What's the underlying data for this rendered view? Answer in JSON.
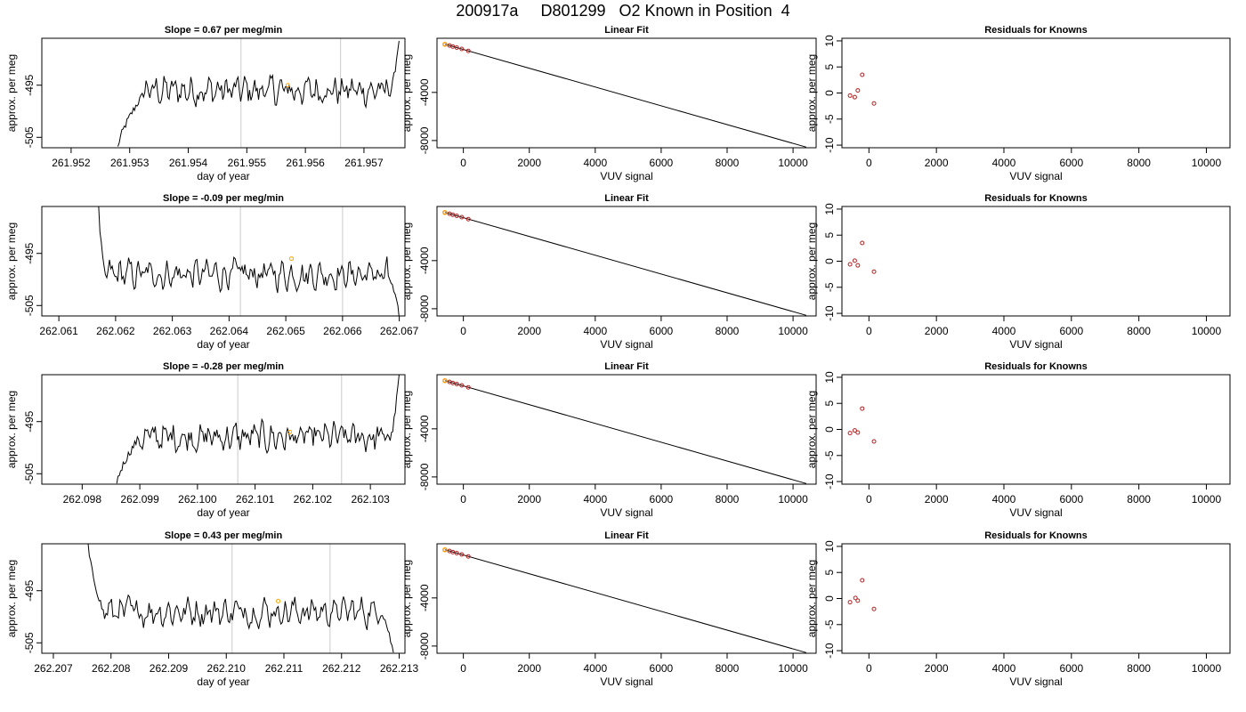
{
  "page_title": "200917a     D801299   O2 Known in Position  4",
  "colors": {
    "trace": "#000000",
    "vline": "#d3d3d3",
    "highlight": "#ffa500",
    "knowns": "#b22222",
    "fit": "#000000"
  },
  "chart_data": [
    {
      "type": "line",
      "panel": "timeseries",
      "row": 1,
      "title": "Slope =  0.67  per meg/min",
      "xlabel": "day of year",
      "ylabel": "approx. per meg",
      "xticks": [
        "261.952",
        "261.953",
        "261.954",
        "261.955",
        "261.956",
        "261.957"
      ],
      "xlim": [
        261.9515,
        261.9577
      ],
      "yticks": [
        "-495",
        "-505"
      ],
      "ytick_values": [
        -495,
        -505
      ],
      "ylim": [
        -507,
        -486
      ],
      "vlines": [
        261.9549,
        261.9566
      ],
      "highlight_point": {
        "x": 261.9557,
        "y": -495
      },
      "series": {
        "x0": 261.9528,
        "x1": 261.9576,
        "y_start": -507,
        "y_end": -486,
        "level": -496,
        "rise": 0.1,
        "fall": 0.97
      }
    },
    {
      "type": "scatter",
      "panel": "linear-fit",
      "row": 1,
      "title": "Linear Fit",
      "xlabel": "VUV signal",
      "ylabel": "approx. per meg",
      "xticks": [
        "0",
        "2000",
        "4000",
        "6000",
        "8000",
        "10000"
      ],
      "xlim": [
        -800,
        10700
      ],
      "yticks": [
        "-4000",
        "-8000"
      ],
      "ytick_values": [
        -4000,
        -8000
      ],
      "ylim": [
        -8600,
        500
      ],
      "fit_line": [
        [
          -550,
          0
        ],
        [
          10400,
          -8550
        ]
      ],
      "points": [
        [
          -560,
          0
        ],
        [
          -420,
          -100
        ],
        [
          -320,
          -190
        ],
        [
          -200,
          -280
        ],
        [
          -50,
          -390
        ],
        [
          150,
          -550
        ]
      ],
      "highlight_point": [
        -560,
        0
      ]
    },
    {
      "type": "scatter",
      "panel": "residuals",
      "row": 1,
      "title": "Residuals for Knowns",
      "xlabel": "VUV signal",
      "ylabel": "approx. per meg",
      "xticks": [
        "0",
        "2000",
        "4000",
        "6000",
        "8000",
        "10000"
      ],
      "xlim": [
        -800,
        10700
      ],
      "yticks": [
        "-10",
        "-5",
        "0",
        "5",
        "10"
      ],
      "ytick_values": [
        -10,
        -5,
        0,
        5,
        10
      ],
      "ylim": [
        -10.5,
        10.5
      ],
      "points": [
        [
          -560,
          -0.5
        ],
        [
          -420,
          -0.8
        ],
        [
          -330,
          0.5
        ],
        [
          -200,
          3.5
        ],
        [
          150,
          -2.0
        ]
      ]
    },
    {
      "type": "line",
      "panel": "timeseries",
      "row": 2,
      "title": "Slope =  -0.09  per meg/min",
      "xlabel": "day of year",
      "ylabel": "approx. per meg",
      "xticks": [
        "262.061",
        "262.062",
        "262.063",
        "262.064",
        "262.065",
        "262.066",
        "262.067"
      ],
      "xlim": [
        262.0607,
        262.0671
      ],
      "yticks": [
        "-495",
        "-505"
      ],
      "ytick_values": [
        -495,
        -505
      ],
      "ylim": [
        -507,
        -486
      ],
      "vlines": [
        262.0642,
        262.066
      ],
      "highlight_point": {
        "x": 262.0651,
        "y": -496
      },
      "series": {
        "x0": 262.0617,
        "x1": 262.067,
        "y_start": -486,
        "y_end": -507,
        "level": -499,
        "rise": 0.02,
        "fall": 0.96
      }
    },
    {
      "type": "scatter",
      "panel": "linear-fit",
      "row": 2,
      "title": "Linear Fit",
      "xlabel": "VUV signal",
      "ylabel": "approx. per meg",
      "xticks": [
        "0",
        "2000",
        "4000",
        "6000",
        "8000",
        "10000"
      ],
      "xlim": [
        -800,
        10700
      ],
      "yticks": [
        "-4000",
        "-8000"
      ],
      "ytick_values": [
        -4000,
        -8000
      ],
      "ylim": [
        -8600,
        500
      ],
      "fit_line": [
        [
          -550,
          0
        ],
        [
          10400,
          -8550
        ]
      ],
      "points": [
        [
          -560,
          0
        ],
        [
          -420,
          -100
        ],
        [
          -320,
          -190
        ],
        [
          -200,
          -280
        ],
        [
          -50,
          -390
        ],
        [
          150,
          -550
        ]
      ],
      "highlight_point": [
        -560,
        0
      ]
    },
    {
      "type": "scatter",
      "panel": "residuals",
      "row": 2,
      "title": "Residuals for Knowns",
      "xlabel": "VUV signal",
      "ylabel": "approx. per meg",
      "xticks": [
        "0",
        "2000",
        "4000",
        "6000",
        "8000",
        "10000"
      ],
      "xlim": [
        -800,
        10700
      ],
      "yticks": [
        "-10",
        "-5",
        "0",
        "5",
        "10"
      ],
      "ytick_values": [
        -10,
        -5,
        0,
        5,
        10
      ],
      "ylim": [
        -10.5,
        10.5
      ],
      "points": [
        [
          -560,
          -0.6
        ],
        [
          -420,
          0.1
        ],
        [
          -330,
          -0.8
        ],
        [
          -200,
          3.5
        ],
        [
          150,
          -2.0
        ]
      ]
    },
    {
      "type": "line",
      "panel": "timeseries",
      "row": 3,
      "title": "Slope =  -0.28  per meg/min",
      "xlabel": "day of year",
      "ylabel": "approx. per meg",
      "xticks": [
        "262.098",
        "262.099",
        "262.100",
        "262.101",
        "262.102",
        "262.103"
      ],
      "xlim": [
        262.0973,
        262.1036
      ],
      "yticks": [
        "-495",
        "-505"
      ],
      "ytick_values": [
        -495,
        -505
      ],
      "ylim": [
        -507,
        -486
      ],
      "vlines": [
        262.1007,
        262.1025
      ],
      "highlight_point": {
        "x": 262.1016,
        "y": -497
      },
      "series": {
        "x0": 262.0986,
        "x1": 262.1035,
        "y_start": -507,
        "y_end": -486,
        "level": -498,
        "rise": 0.08,
        "fall": 0.97
      }
    },
    {
      "type": "scatter",
      "panel": "linear-fit",
      "row": 3,
      "title": "Linear Fit",
      "xlabel": "VUV signal",
      "ylabel": "approx. per meg",
      "xticks": [
        "0",
        "2000",
        "4000",
        "6000",
        "8000",
        "10000"
      ],
      "xlim": [
        -800,
        10700
      ],
      "yticks": [
        "-4000",
        "-8000"
      ],
      "ytick_values": [
        -4000,
        -8000
      ],
      "ylim": [
        -8600,
        500
      ],
      "fit_line": [
        [
          -550,
          0
        ],
        [
          10400,
          -8550
        ]
      ],
      "points": [
        [
          -560,
          0
        ],
        [
          -420,
          -100
        ],
        [
          -320,
          -190
        ],
        [
          -200,
          -280
        ],
        [
          -50,
          -390
        ],
        [
          150,
          -550
        ]
      ],
      "highlight_point": [
        -560,
        0
      ]
    },
    {
      "type": "scatter",
      "panel": "residuals",
      "row": 3,
      "title": "Residuals for Knowns",
      "xlabel": "VUV signal",
      "ylabel": "approx. per meg",
      "xticks": [
        "0",
        "2000",
        "4000",
        "6000",
        "8000",
        "10000"
      ],
      "xlim": [
        -800,
        10700
      ],
      "yticks": [
        "-10",
        "-5",
        "0",
        "5",
        "10"
      ],
      "ytick_values": [
        -10,
        -5,
        0,
        5,
        10
      ],
      "ylim": [
        -10.5,
        10.5
      ],
      "points": [
        [
          -560,
          -0.7
        ],
        [
          -420,
          -0.2
        ],
        [
          -330,
          -0.6
        ],
        [
          -200,
          4.0
        ],
        [
          150,
          -2.3
        ]
      ]
    },
    {
      "type": "line",
      "panel": "timeseries",
      "row": 4,
      "title": "Slope =  0.43  per meg/min",
      "xlabel": "day of year",
      "ylabel": "approx. per meg",
      "xticks": [
        "262.207",
        "262.208",
        "262.209",
        "262.210",
        "262.211",
        "262.212",
        "262.213"
      ],
      "xlim": [
        262.2068,
        262.2131
      ],
      "yticks": [
        "-495",
        "-505"
      ],
      "ytick_values": [
        -495,
        -505
      ],
      "ylim": [
        -507,
        -486
      ],
      "vlines": [
        262.2101,
        262.2118
      ],
      "highlight_point": {
        "x": 262.2109,
        "y": -497
      },
      "series": {
        "x0": 262.2076,
        "x1": 262.2129,
        "y_start": -486,
        "y_end": -507,
        "level": -499,
        "rise": 0.05,
        "fall": 0.96
      }
    },
    {
      "type": "scatter",
      "panel": "linear-fit",
      "row": 4,
      "title": "Linear Fit",
      "xlabel": "VUV signal",
      "ylabel": "approx. per meg",
      "xticks": [
        "0",
        "2000",
        "4000",
        "6000",
        "8000",
        "10000"
      ],
      "xlim": [
        -800,
        10700
      ],
      "yticks": [
        "-4000",
        "-8000"
      ],
      "ytick_values": [
        -4000,
        -8000
      ],
      "ylim": [
        -8600,
        500
      ],
      "fit_line": [
        [
          -550,
          0
        ],
        [
          10400,
          -8550
        ]
      ],
      "points": [
        [
          -560,
          0
        ],
        [
          -420,
          -100
        ],
        [
          -320,
          -190
        ],
        [
          -200,
          -280
        ],
        [
          -50,
          -390
        ],
        [
          150,
          -550
        ]
      ],
      "highlight_point": [
        -560,
        0
      ]
    },
    {
      "type": "scatter",
      "panel": "residuals",
      "row": 4,
      "title": "Residuals for Knowns",
      "xlabel": "VUV signal",
      "ylabel": "approx. per meg",
      "xticks": [
        "0",
        "2000",
        "4000",
        "6000",
        "8000",
        "10000"
      ],
      "xlim": [
        -800,
        10700
      ],
      "yticks": [
        "-10",
        "-5",
        "0",
        "5",
        "10"
      ],
      "ytick_values": [
        -10,
        -5,
        0,
        5,
        10
      ],
      "ylim": [
        -10.5,
        10.5
      ],
      "points": [
        [
          -560,
          -0.7
        ],
        [
          -400,
          0.1
        ],
        [
          -330,
          -0.4
        ],
        [
          -200,
          3.5
        ],
        [
          150,
          -2.0
        ]
      ]
    }
  ]
}
